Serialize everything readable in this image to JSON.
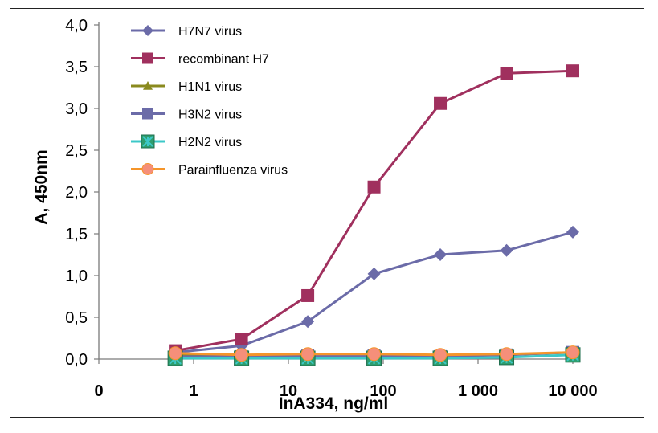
{
  "chart_data": {
    "type": "line",
    "title": "",
    "xlabel": "InA334, ng/ml",
    "ylabel": "A, 450nm",
    "x_scale": "log",
    "x_tick_labels": [
      "0",
      "1",
      "10",
      "100",
      "1 000",
      "10 000"
    ],
    "y_tick_labels": [
      "0,0",
      "0,5",
      "1,0",
      "1,5",
      "2,0",
      "2,5",
      "3,0",
      "3,5",
      "4,0"
    ],
    "ylim": [
      0,
      4
    ],
    "grid": false,
    "legend_position": "top-left",
    "x": [
      0.64,
      3.2,
      16,
      80,
      400,
      2000,
      10000
    ],
    "series": [
      {
        "name": "H7N7 virus",
        "color": "#6B6BA8",
        "marker": "diamond",
        "values": [
          0.08,
          0.16,
          0.45,
          1.02,
          1.25,
          1.3,
          1.52
        ]
      },
      {
        "name": "recombinant H7",
        "color": "#A0305E",
        "marker": "square",
        "values": [
          0.1,
          0.24,
          0.76,
          2.06,
          3.06,
          3.42,
          3.45
        ]
      },
      {
        "name": "H1N1 virus",
        "color": "#8A8A1E",
        "marker": "triangle",
        "values": [
          0.05,
          0.04,
          0.05,
          0.05,
          0.04,
          0.05,
          0.08
        ]
      },
      {
        "name": "H3N2 virus",
        "color": "#6B6BA8",
        "marker": "square",
        "values": [
          0.03,
          0.03,
          0.04,
          0.04,
          0.03,
          0.05,
          0.08
        ]
      },
      {
        "name": "H2N2 virus",
        "color": "#3CC8C8",
        "marker": "x-square",
        "values": [
          0.01,
          0.01,
          0.01,
          0.01,
          0.01,
          0.02,
          0.05
        ]
      },
      {
        "name": "Parainfluenza virus",
        "color": "#F5952A",
        "marker": "circle",
        "values": [
          0.07,
          0.05,
          0.06,
          0.06,
          0.05,
          0.06,
          0.08
        ]
      }
    ]
  }
}
